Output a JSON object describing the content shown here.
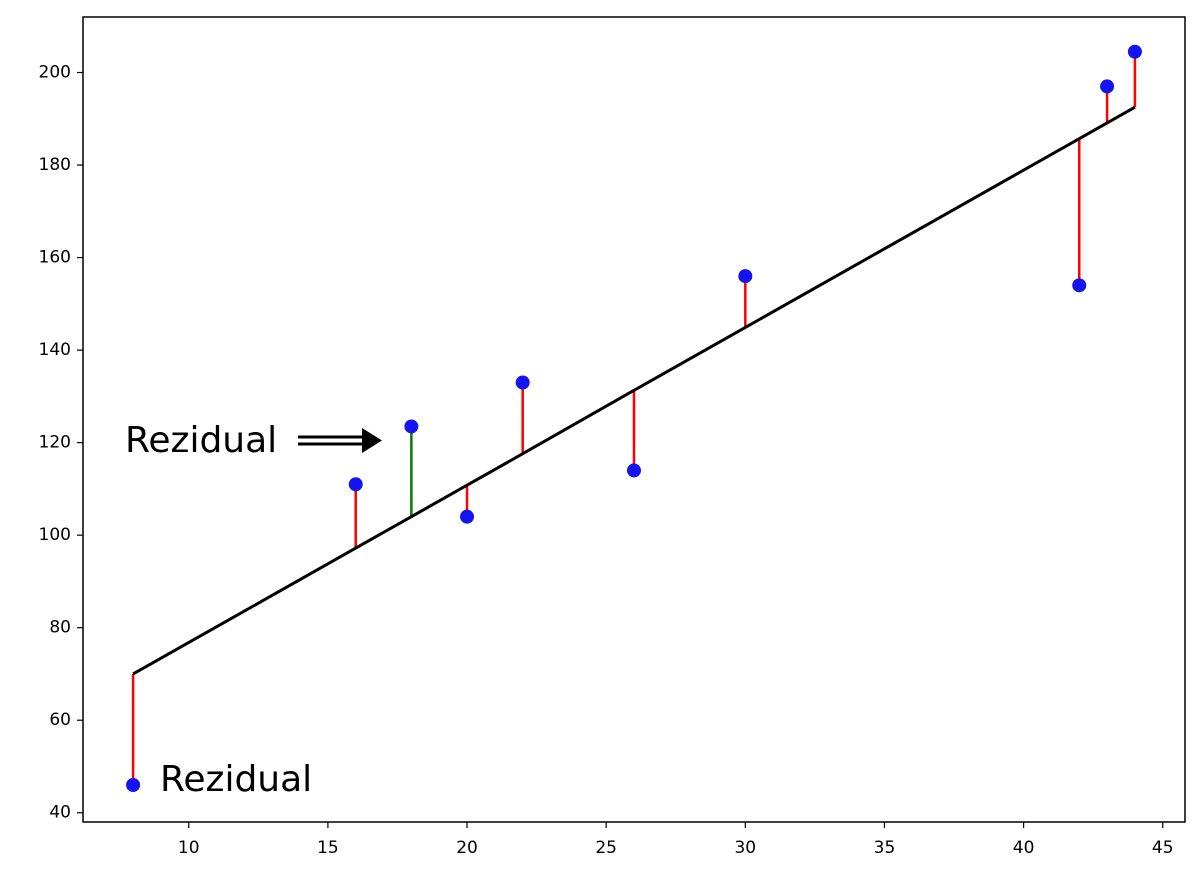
{
  "chart_data": {
    "type": "scatter",
    "x": [
      8,
      16,
      18,
      20,
      22,
      26,
      30,
      42,
      43,
      44
    ],
    "points": {
      "color": "#1414f0",
      "values": [
        46,
        111,
        123.5,
        104,
        133,
        114,
        156,
        154,
        197,
        204.5
      ]
    },
    "fit": {
      "color": "#000000",
      "values": [
        70,
        97.2,
        104.0,
        110.8,
        117.6,
        131.3,
        144.9,
        185.7,
        189.1,
        192.5
      ]
    },
    "residual_colors": [
      "#ff0000",
      "#ff0000",
      "#008000",
      "#ff0000",
      "#ff0000",
      "#ff0000",
      "#ff0000",
      "#ff0000",
      "#ff0000",
      "#ff0000"
    ],
    "annotations": [
      "Rezidual",
      "Rezidual"
    ],
    "xlim": [
      6.2,
      45.8
    ],
    "ylim": [
      38,
      212
    ],
    "xticks": [
      10,
      15,
      20,
      25,
      30,
      35,
      40,
      45
    ],
    "yticks": [
      40,
      60,
      80,
      100,
      120,
      140,
      160,
      180,
      200
    ]
  }
}
